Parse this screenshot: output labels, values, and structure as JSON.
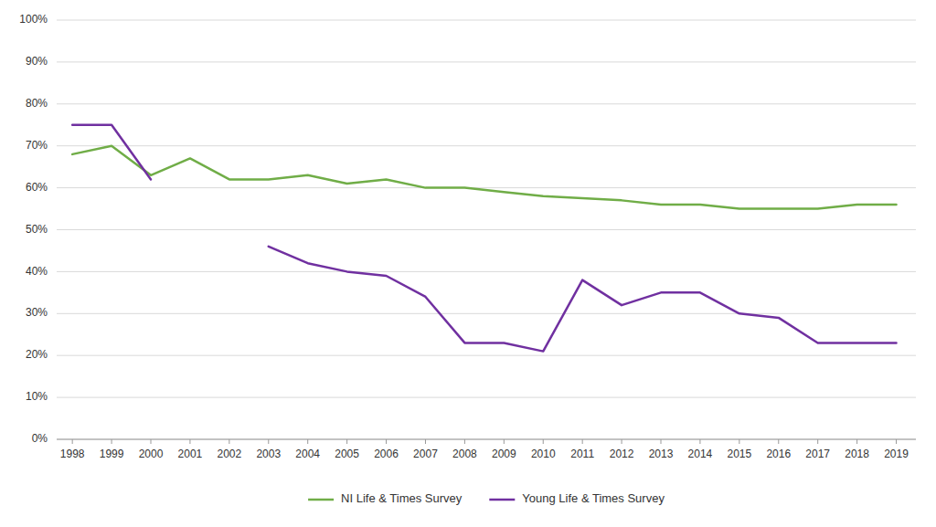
{
  "chart_data": {
    "type": "line",
    "series": [
      {
        "name": "NI Life & Times Survey",
        "color": "#70AD47",
        "x": [
          1998,
          1999,
          2000,
          2001,
          2002,
          2003,
          2004,
          2005,
          2006,
          2007,
          2008,
          2009,
          2010,
          2012,
          2013,
          2014,
          2015,
          2016,
          2017,
          2018,
          2019
        ],
        "values": [
          0.68,
          0.7,
          0.63,
          0.67,
          0.62,
          0.62,
          0.63,
          0.61,
          0.62,
          0.6,
          0.6,
          0.59,
          0.58,
          0.57,
          0.56,
          0.56,
          0.55,
          0.55,
          0.55,
          0.56,
          0.56
        ]
      },
      {
        "name": "Young Life & Times Survey",
        "color": "#7030A0",
        "x": [
          1998,
          1999,
          2000,
          2001,
          2002,
          2003,
          2004,
          2005,
          2006,
          2007,
          2008,
          2009,
          2010,
          2011,
          2012,
          2013,
          2014,
          2015,
          2016,
          2017,
          2018,
          2019
        ],
        "values": [
          0.75,
          0.75,
          0.62,
          null,
          null,
          0.46,
          0.42,
          0.4,
          0.39,
          0.34,
          0.23,
          0.23,
          0.21,
          0.38,
          0.32,
          0.35,
          0.35,
          0.3,
          0.29,
          0.23,
          0.23,
          0.23
        ]
      }
    ],
    "xlim": [
      1997.6,
      2019.5
    ],
    "xticks": [
      1998,
      1999,
      2000,
      2001,
      2002,
      2003,
      2004,
      2005,
      2006,
      2007,
      2008,
      2009,
      2010,
      2011,
      2012,
      2013,
      2014,
      2015,
      2016,
      2017,
      2018,
      2019
    ],
    "ylim": [
      0,
      1.0
    ],
    "yticks": [
      {
        "value": 0.0,
        "label": "0%"
      },
      {
        "value": 0.1,
        "label": "10%"
      },
      {
        "value": 0.2,
        "label": "20%"
      },
      {
        "value": 0.3,
        "label": "30%"
      },
      {
        "value": 0.4,
        "label": "40%"
      },
      {
        "value": 0.5,
        "label": "50%"
      },
      {
        "value": 0.6,
        "label": "60%"
      },
      {
        "value": 0.7,
        "label": "70%"
      },
      {
        "value": 0.8,
        "label": "80%"
      },
      {
        "value": 0.9,
        "label": "90%"
      },
      {
        "value": 1.0,
        "label": "100%"
      }
    ],
    "grid": true,
    "legend": "bottom"
  }
}
